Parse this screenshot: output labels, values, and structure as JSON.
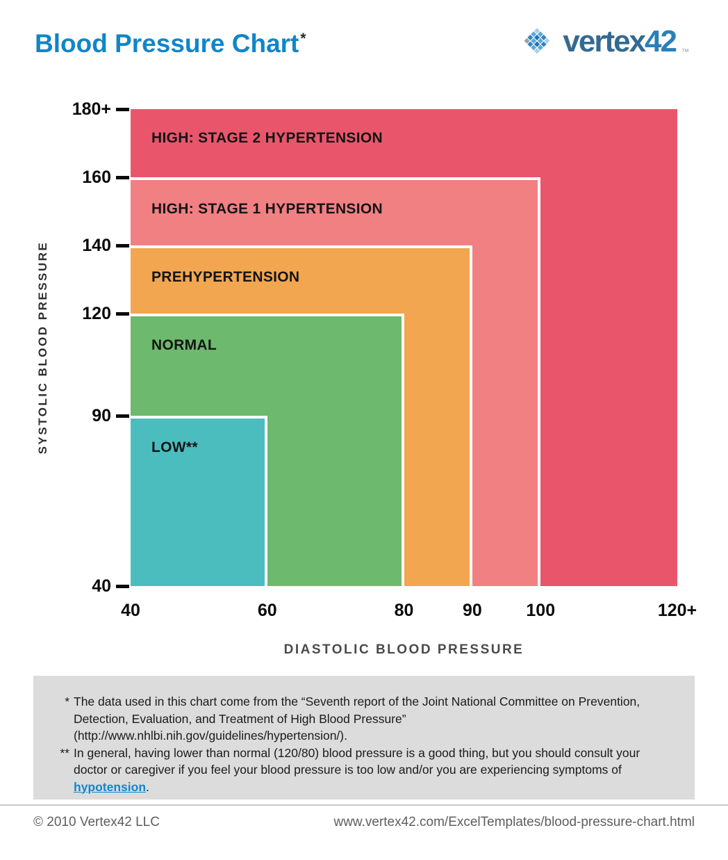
{
  "page": {
    "title": "Blood Pressure Chart",
    "title_asterisk": "*",
    "logo": {
      "text": "vertex",
      "number": "42",
      "tm": "™"
    }
  },
  "chart_data": {
    "type": "area",
    "title": "Blood Pressure Chart",
    "xlabel": "DIASTOLIC BLOOD PRESSURE",
    "ylabel": "SYSTOLIC BLOOD PRESSURE",
    "xlim": [
      40,
      120
    ],
    "ylim": [
      40,
      180
    ],
    "grid": false,
    "legend_position": "none",
    "x_ticks": [
      {
        "label": "40",
        "value": 40
      },
      {
        "label": "60",
        "value": 60
      },
      {
        "label": "80",
        "value": 80
      },
      {
        "label": "90",
        "value": 90
      },
      {
        "label": "100",
        "value": 100
      },
      {
        "label": "120+",
        "value": 120
      }
    ],
    "y_ticks": [
      {
        "label": "180+",
        "value": 180
      },
      {
        "label": "160",
        "value": 160
      },
      {
        "label": "140",
        "value": 140
      },
      {
        "label": "120",
        "value": 120
      },
      {
        "label": "90",
        "value": 90
      },
      {
        "label": "40",
        "value": 40
      }
    ],
    "zones": [
      {
        "label": "HIGH: STAGE 2 HYPERTENSION",
        "diastolic_min": 40,
        "diastolic_max": 120,
        "systolic_min": 40,
        "systolic_max": 180,
        "color": "#E9566B"
      },
      {
        "label": "HIGH: STAGE 1 HYPERTENSION",
        "diastolic_min": 40,
        "diastolic_max": 100,
        "systolic_min": 40,
        "systolic_max": 160,
        "color": "#F18083"
      },
      {
        "label": "PREHYPERTENSION",
        "diastolic_min": 40,
        "diastolic_max": 90,
        "systolic_min": 40,
        "systolic_max": 140,
        "color": "#F2A64F"
      },
      {
        "label": "NORMAL",
        "diastolic_min": 40,
        "diastolic_max": 80,
        "systolic_min": 40,
        "systolic_max": 120,
        "color": "#6DB96D"
      },
      {
        "label": "LOW**",
        "diastolic_min": 40,
        "diastolic_max": 60,
        "systolic_min": 40,
        "systolic_max": 90,
        "color": "#4CBDBE"
      }
    ]
  },
  "footnotes": {
    "note1": {
      "marker": "*",
      "text": "The data used in this chart come from the “Seventh report of the Joint National Committee on Prevention, Detection, Evaluation, and Treatment of High Blood Pressure” (http://www.nhlbi.nih.gov/guidelines/hypertension/)."
    },
    "note2": {
      "marker": "**",
      "text_before_link": "In general, having lower than normal (120/80) blood pressure is a good thing, but you should consult your doctor or caregiver if you feel your blood pressure is too low and/or you are experiencing symptoms of ",
      "link_text": "hypotension",
      "text_after_link": "."
    }
  },
  "footer": {
    "copyright": "© 2010 Vertex42 LLC",
    "url": "www.vertex42.com/ExcelTemplates/blood-pressure-chart.html"
  }
}
